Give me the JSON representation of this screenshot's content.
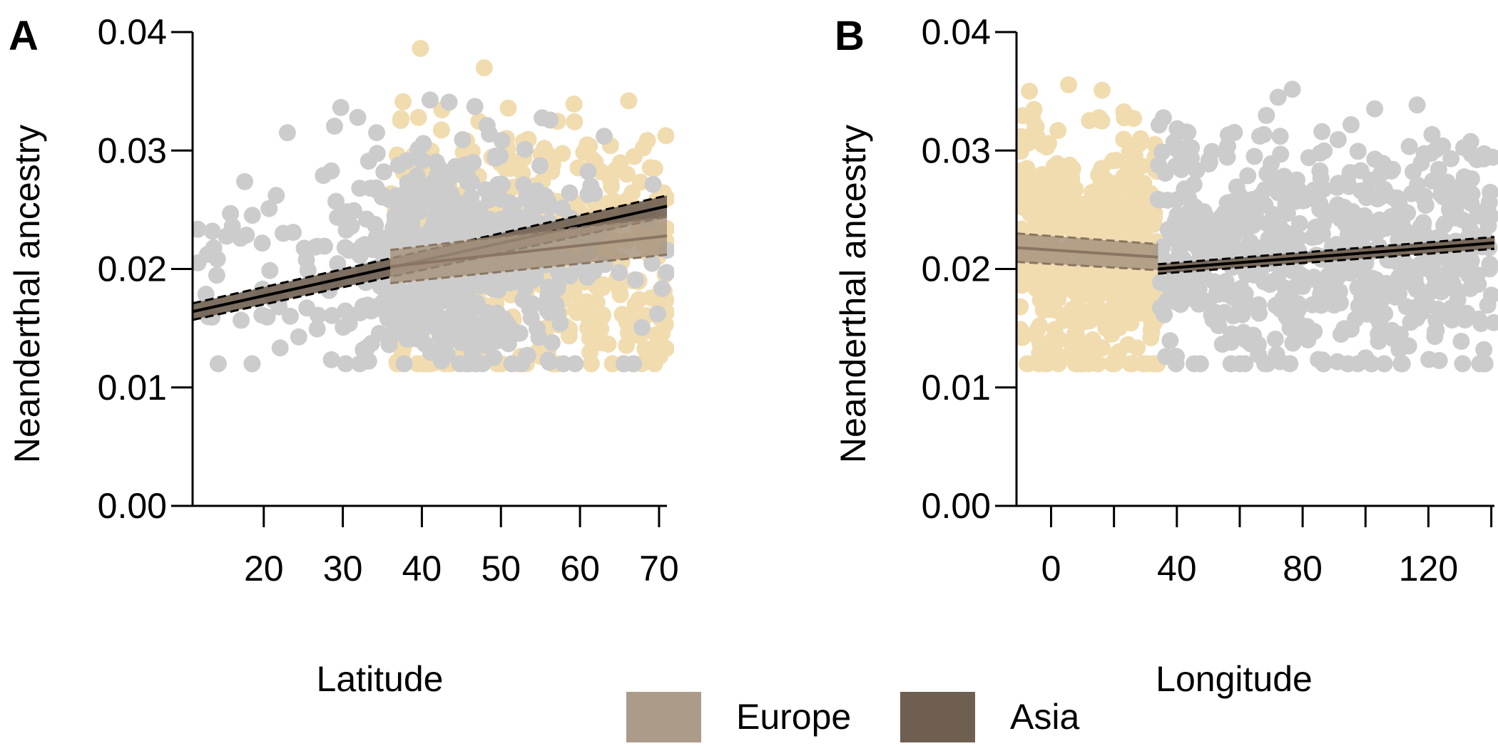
{
  "colors": {
    "europe_points": "#f1dcb0",
    "asia_points": "#cccccc",
    "europe_band": "#a89580",
    "asia_band": "#6f5f50",
    "europe_line": "#8a7562",
    "asia_line": "#000000"
  },
  "legend": {
    "position": "bottom-center",
    "items": [
      {
        "label": "Europe",
        "color": "#ac9b88"
      },
      {
        "label": "Asia",
        "color": "#6f5f50"
      }
    ]
  },
  "chart_data": [
    {
      "panel": "A",
      "type": "scatter",
      "xlabel": "Latitude",
      "ylabel": "Neanderthal ancestry",
      "xlim": [
        11,
        71
      ],
      "ylim": [
        0.0,
        0.04
      ],
      "xticks": [
        20,
        30,
        40,
        50,
        60,
        70
      ],
      "yticks": [
        "0.00",
        "0.01",
        "0.02",
        "0.03",
        "0.04"
      ],
      "series": [
        {
          "name": "Europe",
          "cloud": {
            "x_range": [
              36,
              71
            ],
            "y_mean": 0.0215,
            "y_sd": 0.0052,
            "n": 500
          }
        },
        {
          "name": "Asia",
          "cloud": {
            "x_range": [
              11,
              71
            ],
            "x_center": 44,
            "y_mean": 0.021,
            "y_sd": 0.0045,
            "n": 650
          }
        }
      ],
      "fits": [
        {
          "name": "Asia",
          "x": [
            11,
            71
          ],
          "y": [
            0.0164,
            0.0253
          ],
          "ci": [
            0.0007,
            0.0009
          ]
        },
        {
          "name": "Europe",
          "x": [
            36,
            71
          ],
          "y": [
            0.0202,
            0.0228
          ],
          "ci": [
            0.0014,
            0.0016
          ]
        }
      ]
    },
    {
      "panel": "B",
      "type": "scatter",
      "xlabel": "Longitude",
      "ylabel": "Neanderthal ancestry",
      "xlim": [
        -11,
        141
      ],
      "ylim": [
        0.0,
        0.04
      ],
      "xticks": [
        "0",
        "40",
        "80",
        "120"
      ],
      "yticks": [
        "0.00",
        "0.01",
        "0.02",
        "0.03",
        "0.04"
      ],
      "series": [
        {
          "name": "Europe",
          "cloud": {
            "x_range": [
              -10,
              34
            ],
            "y_mean": 0.022,
            "y_sd": 0.0055,
            "n": 520
          }
        },
        {
          "name": "Asia",
          "cloud": {
            "x_range": [
              34,
              141
            ],
            "y_mean": 0.0215,
            "y_sd": 0.0048,
            "n": 620
          }
        }
      ],
      "fits": [
        {
          "name": "Europe",
          "x": [
            -11,
            34
          ],
          "y": [
            0.0218,
            0.021
          ],
          "ci": [
            0.0012,
            0.0011
          ]
        },
        {
          "name": "Asia",
          "x": [
            34,
            141
          ],
          "y": [
            0.02,
            0.0222
          ],
          "ci": [
            0.0004,
            0.0005
          ]
        }
      ]
    }
  ]
}
